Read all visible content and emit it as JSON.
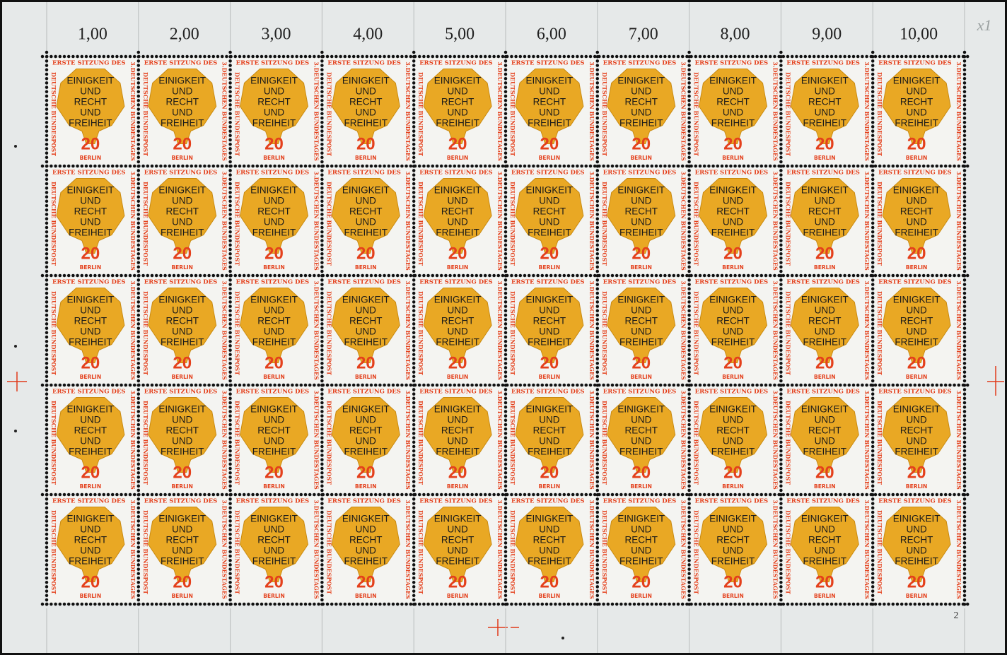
{
  "margin_values": [
    "1,00",
    "2,00",
    "3,00",
    "4,00",
    "5,00",
    "6,00",
    "7,00",
    "8,00",
    "9,00",
    "10,00"
  ],
  "corner_mark": "x1",
  "sheet_number": "2",
  "stamp": {
    "top_text": "ERSTE SITZUNG DES",
    "right_text": "3.DEUTSCHEN BUNDESTAGES",
    "left_text": "DEUTSCHE BUNDESPOST",
    "motto": [
      "EINIGKEIT",
      "UND",
      "RECHT",
      "UND",
      "FREIHEIT"
    ],
    "denomination": "20",
    "city": "BERLIN"
  }
}
